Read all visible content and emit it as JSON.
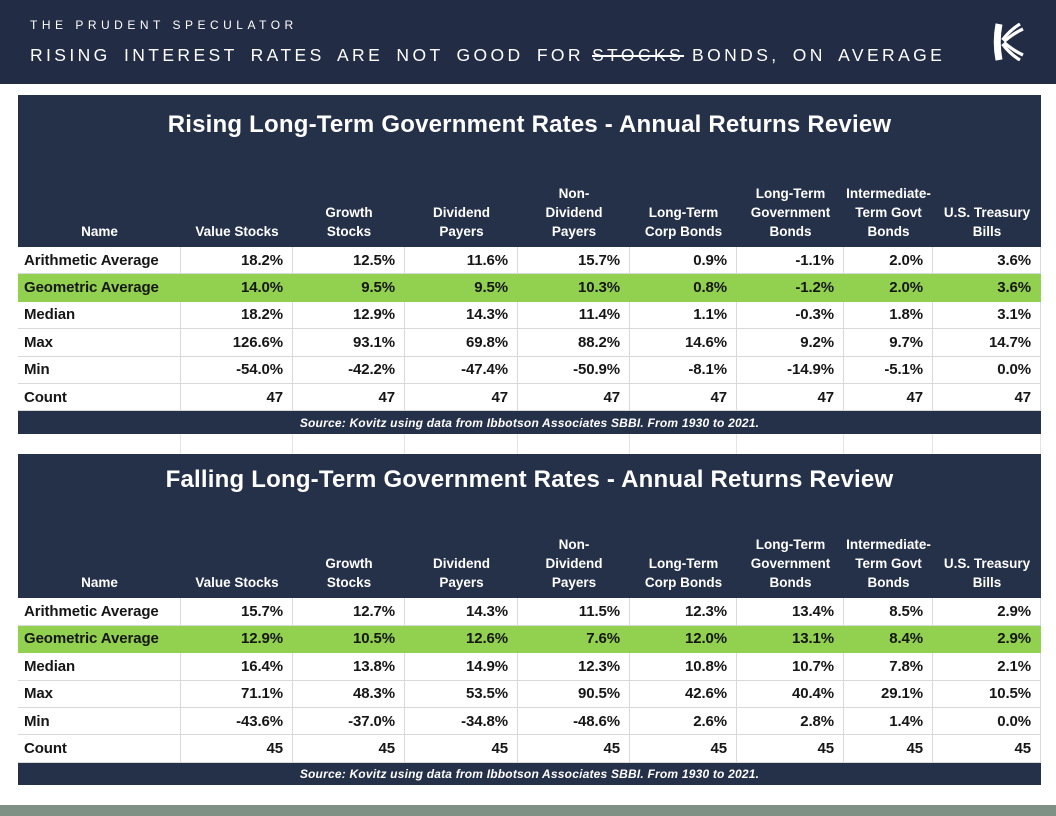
{
  "banner": {
    "brand": "THE PRUDENT SPECULATOR",
    "headline_prefix": "RISING INTEREST RATES ARE NOT GOOD FOR",
    "headline_struck": "STOCKS",
    "headline_suffix": "BONDS, ON AVERAGE",
    "logo_icon": "kovitz-k-logo"
  },
  "colors": {
    "banner_navy": "#222c44",
    "table_navy": "#253049",
    "highlight_green": "#92d050",
    "bottom_bar_sage": "#7f9184",
    "grid_line": "#d9d9d9"
  },
  "tables": [
    {
      "title": "Rising Long-Term Government Rates - Annual Returns Review",
      "columns": [
        "Name",
        "Value Stocks",
        "Growth\nStocks",
        "Dividend\nPayers",
        "Non-\nDividend\nPayers",
        "Long-Term\nCorp Bonds",
        "Long-Term\nGovernment\nBonds",
        "Intermediate-\nTerm Govt\nBonds",
        "U.S. Treasury\nBills"
      ],
      "rows": [
        {
          "name": "Arithmetic Average",
          "highlight": false,
          "values": [
            "18.2%",
            "12.5%",
            "11.6%",
            "15.7%",
            "0.9%",
            "-1.1%",
            "2.0%",
            "3.6%"
          ]
        },
        {
          "name": "Geometric Average",
          "highlight": true,
          "values": [
            "14.0%",
            "9.5%",
            "9.5%",
            "10.3%",
            "0.8%",
            "-1.2%",
            "2.0%",
            "3.6%"
          ]
        },
        {
          "name": "Median",
          "highlight": false,
          "values": [
            "18.2%",
            "12.9%",
            "14.3%",
            "11.4%",
            "1.1%",
            "-0.3%",
            "1.8%",
            "3.1%"
          ]
        },
        {
          "name": "Max",
          "highlight": false,
          "values": [
            "126.6%",
            "93.1%",
            "69.8%",
            "88.2%",
            "14.6%",
            "9.2%",
            "9.7%",
            "14.7%"
          ]
        },
        {
          "name": "Min",
          "highlight": false,
          "values": [
            "-54.0%",
            "-42.2%",
            "-47.4%",
            "-50.9%",
            "-8.1%",
            "-14.9%",
            "-5.1%",
            "0.0%"
          ]
        },
        {
          "name": "Count",
          "highlight": false,
          "values": [
            "47",
            "47",
            "47",
            "47",
            "47",
            "47",
            "47",
            "47"
          ]
        }
      ],
      "source": "Source: Kovitz using data from Ibbotson Associates SBBI. From 1930 to 2021."
    },
    {
      "title": "Falling Long-Term Government Rates - Annual Returns Review",
      "columns": [
        "Name",
        "Value Stocks",
        "Growth\nStocks",
        "Dividend\nPayers",
        "Non-\nDividend\nPayers",
        "Long-Term\nCorp Bonds",
        "Long-Term\nGovernment\nBonds",
        "Intermediate-\nTerm Govt\nBonds",
        "U.S. Treasury\nBills"
      ],
      "rows": [
        {
          "name": "Arithmetic Average",
          "highlight": false,
          "values": [
            "15.7%",
            "12.7%",
            "14.3%",
            "11.5%",
            "12.3%",
            "13.4%",
            "8.5%",
            "2.9%"
          ]
        },
        {
          "name": "Geometric Average",
          "highlight": true,
          "values": [
            "12.9%",
            "10.5%",
            "12.6%",
            "7.6%",
            "12.0%",
            "13.1%",
            "8.4%",
            "2.9%"
          ]
        },
        {
          "name": "Median",
          "highlight": false,
          "values": [
            "16.4%",
            "13.8%",
            "14.9%",
            "12.3%",
            "10.8%",
            "10.7%",
            "7.8%",
            "2.1%"
          ]
        },
        {
          "name": "Max",
          "highlight": false,
          "values": [
            "71.1%",
            "48.3%",
            "53.5%",
            "90.5%",
            "42.6%",
            "40.4%",
            "29.1%",
            "10.5%"
          ]
        },
        {
          "name": "Min",
          "highlight": false,
          "values": [
            "-43.6%",
            "-37.0%",
            "-34.8%",
            "-48.6%",
            "2.6%",
            "2.8%",
            "1.4%",
            "0.0%"
          ]
        },
        {
          "name": "Count",
          "highlight": false,
          "values": [
            "45",
            "45",
            "45",
            "45",
            "45",
            "45",
            "45",
            "45"
          ]
        }
      ],
      "source": "Source: Kovitz using data from Ibbotson Associates SBBI. From 1930 to 2021."
    }
  ]
}
